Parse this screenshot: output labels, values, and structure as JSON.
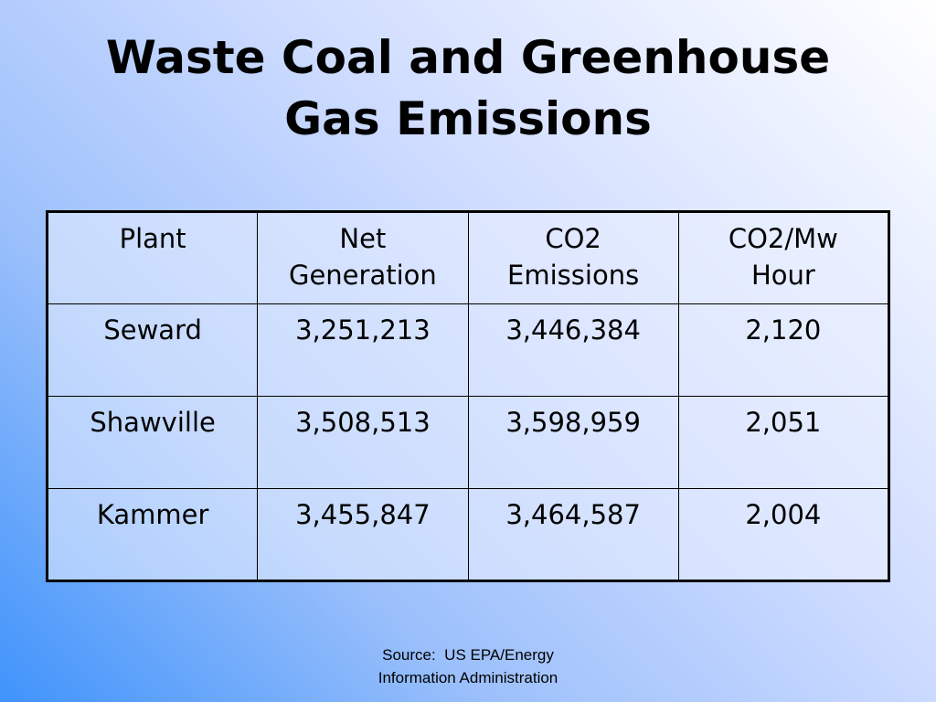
{
  "title": [
    "Waste Coal and Greenhouse",
    "Gas Emissions"
  ],
  "table": {
    "header": [
      [
        "Plant"
      ],
      [
        "Net",
        "Generation"
      ],
      [
        "CO2",
        "Emissions"
      ],
      [
        "CO2/Mw",
        "Hour"
      ]
    ],
    "rows": [
      [
        "Seward",
        "3,251,213",
        "3,446,384",
        "2,120"
      ],
      [
        "Shawville",
        "3,508,513",
        "3,598,959",
        "2,051"
      ],
      [
        "Kammer",
        "3,455,847",
        "3,464,587",
        "2,004"
      ]
    ]
  },
  "source": [
    "Source:  US EPA/Energy",
    "Information Administration"
  ]
}
